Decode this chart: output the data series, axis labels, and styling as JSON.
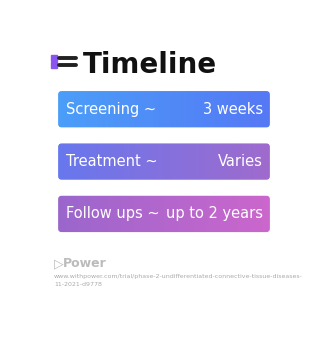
{
  "title": "Timeline",
  "title_icon_color": "#8855ee",
  "background_color": "#ffffff",
  "rows": [
    {
      "label": "Screening ~",
      "value": "3 weeks",
      "color_left": "#4a9ef8",
      "color_right": "#5577f5"
    },
    {
      "label": "Treatment ~",
      "value": "Varies",
      "color_left": "#6677ee",
      "color_right": "#a06acc"
    },
    {
      "label": "Follow ups ~",
      "value": "up to 2 years",
      "color_left": "#9966cc",
      "color_right": "#cc66cc"
    }
  ],
  "footer_brand": "Power",
  "footer_url": "www.withpower.com/trial/phase-2-undifferentiated-connective-tissue-diseases-\n11-2021-d9778",
  "text_fontsize": 10.5,
  "title_fontsize": 20
}
